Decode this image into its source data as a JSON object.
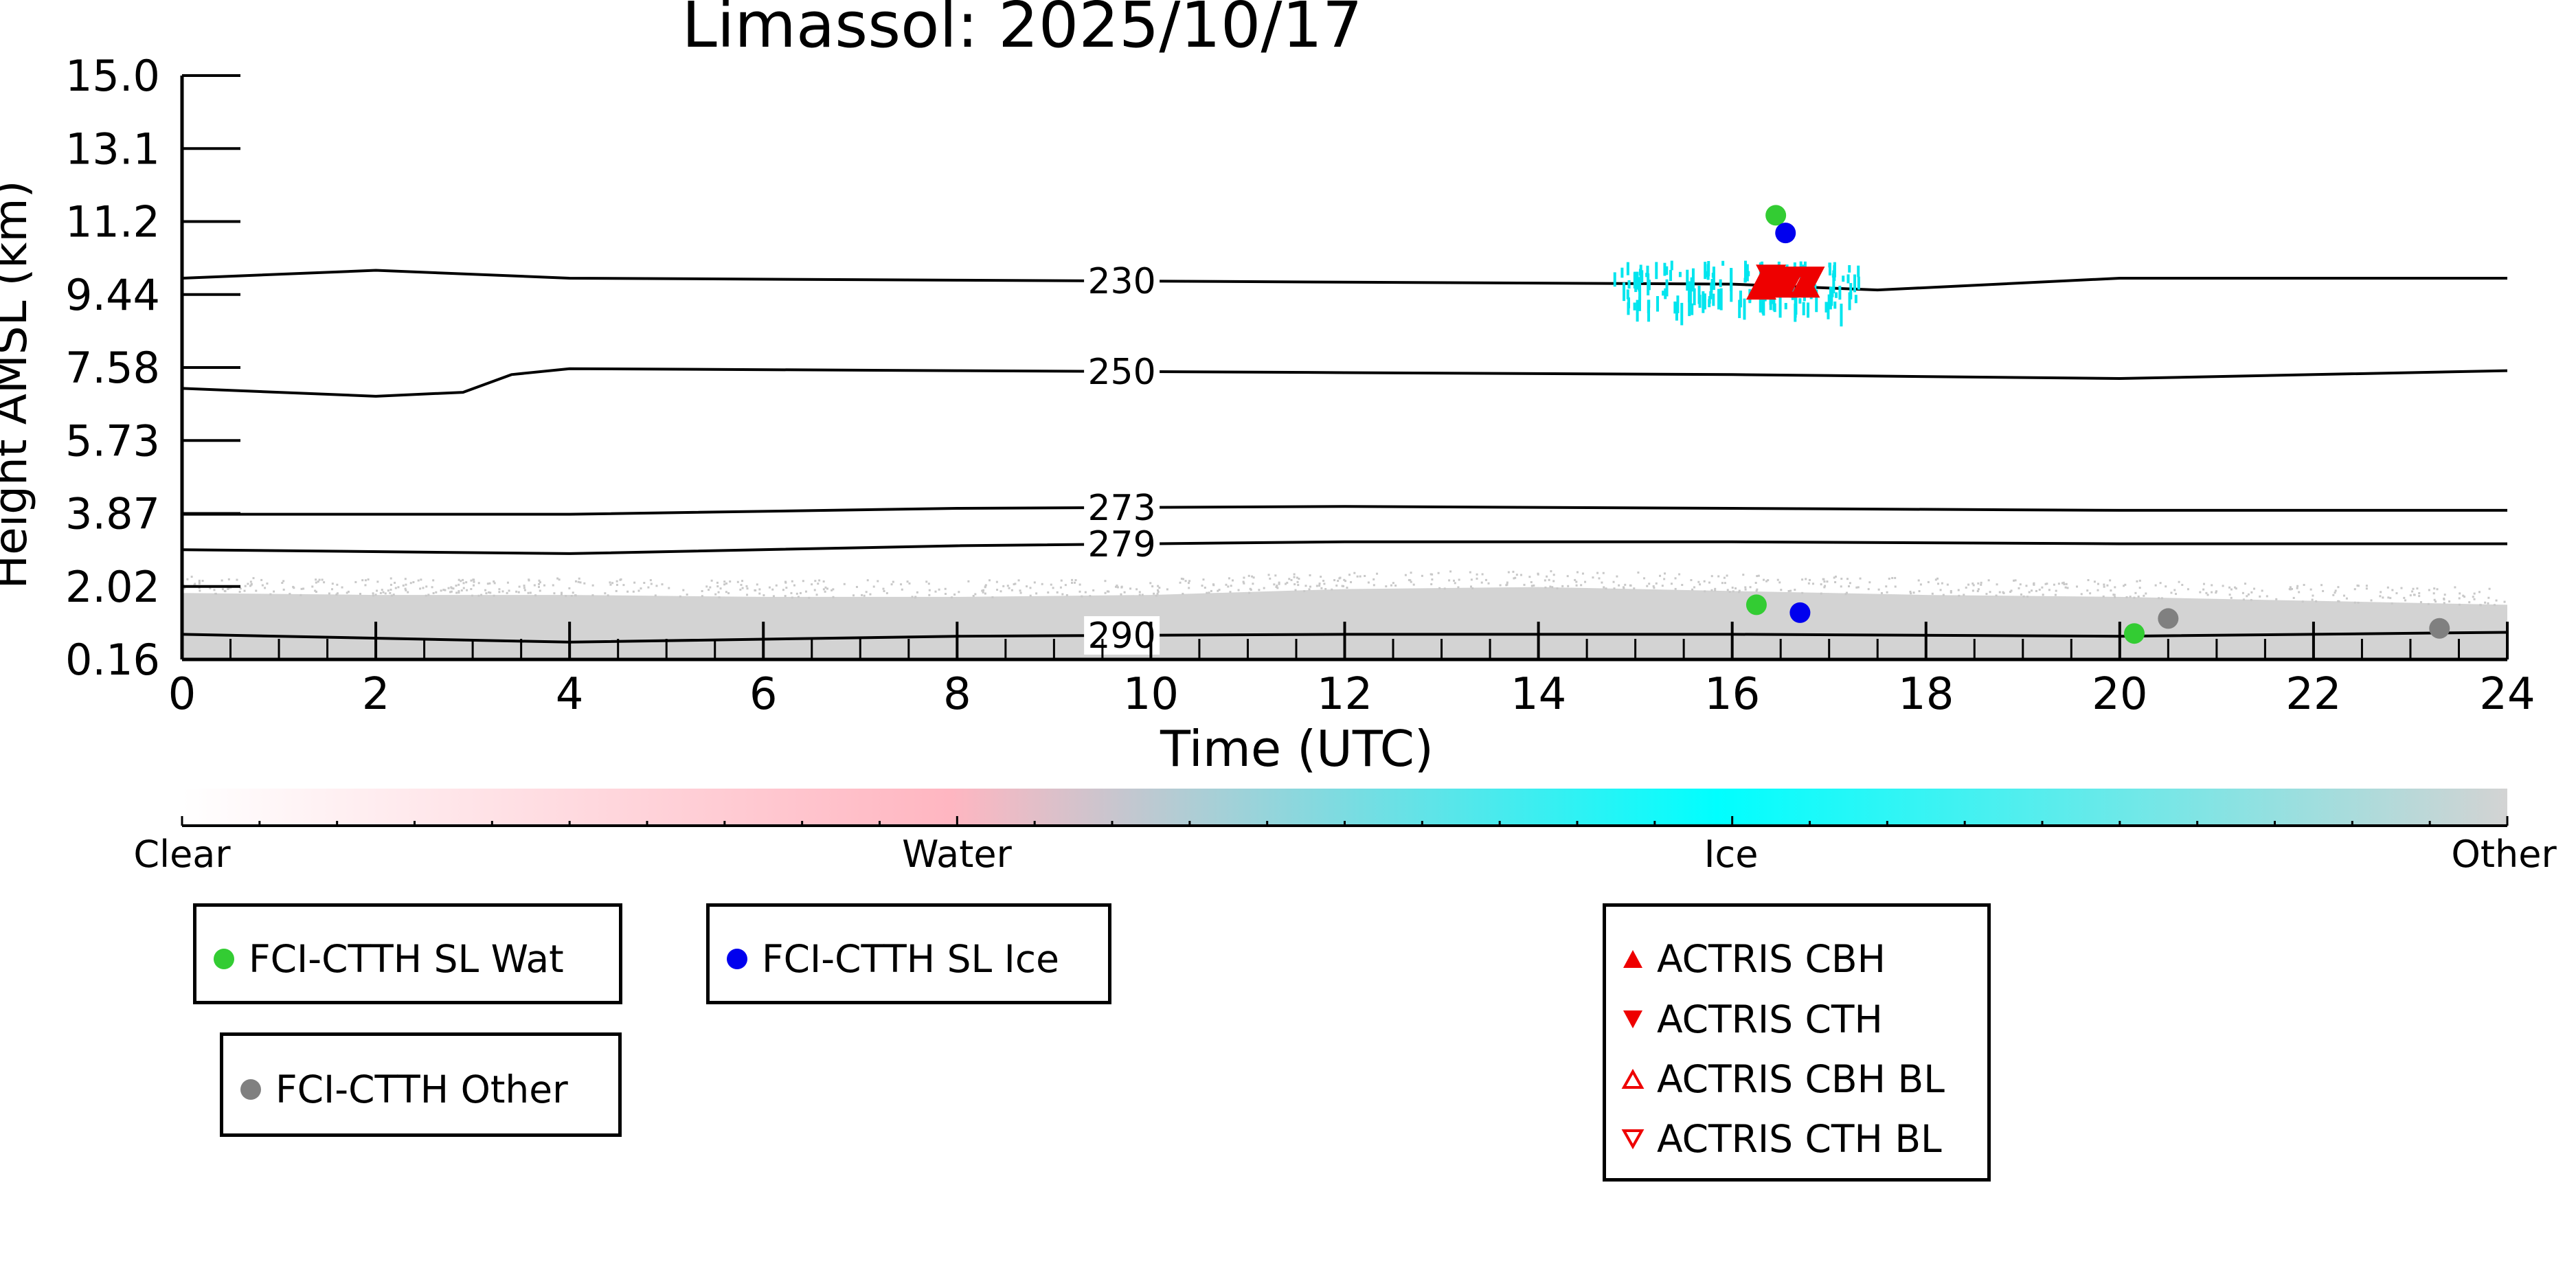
{
  "chart_data": {
    "type": "scatter",
    "title": "Limassol: 2025/10/17",
    "xlabel": "Time (UTC)",
    "ylabel": "Height AMSL (km)",
    "xlim": [
      0,
      24
    ],
    "ylim": [
      0.16,
      15.0
    ],
    "x_ticks": [
      "0",
      "2",
      "4",
      "6",
      "8",
      "10",
      "12",
      "14",
      "16",
      "18",
      "20",
      "22",
      "24"
    ],
    "y_ticks": [
      "0.16",
      "2.02",
      "3.87",
      "5.73",
      "7.58",
      "9.44",
      "11.2",
      "13.1",
      "15.0"
    ],
    "grid": false,
    "temperature_contours": [
      {
        "label": "230",
        "points": [
          [
            0,
            9.85
          ],
          [
            2,
            10.05
          ],
          [
            4,
            9.85
          ],
          [
            8,
            9.8
          ],
          [
            12,
            9.75
          ],
          [
            16,
            9.7
          ],
          [
            17.5,
            9.55
          ],
          [
            20,
            9.85
          ],
          [
            24,
            9.85
          ]
        ]
      },
      {
        "label": "250",
        "points": [
          [
            0,
            7.05
          ],
          [
            2,
            6.85
          ],
          [
            2.9,
            6.95
          ],
          [
            3.4,
            7.4
          ],
          [
            4,
            7.55
          ],
          [
            8,
            7.5
          ],
          [
            12,
            7.45
          ],
          [
            16,
            7.4
          ],
          [
            20,
            7.3
          ],
          [
            22,
            7.4
          ],
          [
            24,
            7.5
          ]
        ]
      },
      {
        "label": "273",
        "points": [
          [
            0,
            3.85
          ],
          [
            4,
            3.85
          ],
          [
            8,
            4.0
          ],
          [
            12,
            4.05
          ],
          [
            16,
            4.0
          ],
          [
            20,
            3.95
          ],
          [
            24,
            3.95
          ]
        ]
      },
      {
        "label": "279",
        "points": [
          [
            0,
            2.95
          ],
          [
            4,
            2.85
          ],
          [
            8,
            3.05
          ],
          [
            12,
            3.15
          ],
          [
            16,
            3.15
          ],
          [
            20,
            3.1
          ],
          [
            24,
            3.1
          ]
        ]
      },
      {
        "label": "290",
        "points": [
          [
            0,
            0.8
          ],
          [
            4,
            0.6
          ],
          [
            8,
            0.75
          ],
          [
            12,
            0.8
          ],
          [
            16,
            0.8
          ],
          [
            20,
            0.75
          ],
          [
            24,
            0.85
          ]
        ]
      }
    ],
    "series": [
      {
        "name": "FCI-CTTH SL Wat",
        "marker": "circle",
        "color": "#33cc33",
        "points": [
          [
            16.45,
            11.45
          ],
          [
            16.25,
            1.55
          ],
          [
            20.15,
            0.82
          ]
        ]
      },
      {
        "name": "FCI-CTTH SL Ice",
        "marker": "circle",
        "color": "#0000ee",
        "points": [
          [
            16.55,
            11.0
          ],
          [
            16.7,
            1.35
          ]
        ]
      },
      {
        "name": "FCI-CTTH Other",
        "marker": "circle",
        "color": "#808080",
        "points": [
          [
            20.5,
            1.2
          ],
          [
            23.3,
            0.95
          ]
        ]
      },
      {
        "name": "ACTRIS CBH",
        "marker": "triangle-up",
        "color": "#ee0000",
        "points": [
          [
            16.3,
            9.55
          ],
          [
            16.5,
            9.6
          ],
          [
            16.75,
            9.6
          ]
        ]
      },
      {
        "name": "ACTRIS CTH",
        "marker": "triangle-down",
        "color": "#ee0000",
        "points": [
          [
            16.4,
            9.95
          ],
          [
            16.6,
            9.9
          ],
          [
            16.8,
            9.9
          ]
        ]
      },
      {
        "name": "ACTRIS CBH BL",
        "marker": "triangle-up-open",
        "color": "#ee0000",
        "points": []
      },
      {
        "name": "ACTRIS CTH BL",
        "marker": "triangle-down-open",
        "color": "#ee0000",
        "points": []
      }
    ],
    "colorbar": {
      "labels": [
        "Clear",
        "Water",
        "Ice",
        "Other"
      ],
      "colors": [
        "#ffffff",
        "#ffb6c1",
        "#00ffff",
        "#d3d3d3"
      ]
    },
    "legend_placement": "below"
  }
}
